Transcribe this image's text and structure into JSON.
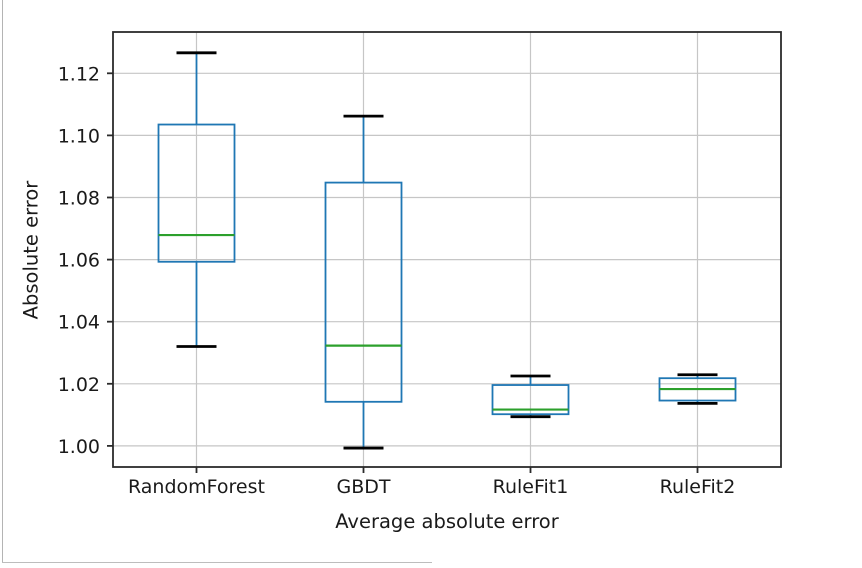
{
  "window": {
    "background": "#ffffff",
    "border_color": "#b4b4b4"
  },
  "chart_data": {
    "type": "box",
    "title": "",
    "xlabel": "Average absolute error",
    "ylabel": "Absolute error",
    "categories": [
      "RandomForest",
      "GBDT",
      "RuleFit1",
      "RuleFit2"
    ],
    "series": [
      {
        "name": "RandomForest",
        "whisker_low": 1.032,
        "q1": 1.0593,
        "median": 1.0679,
        "q3": 1.1035,
        "whisker_high": 1.1266
      },
      {
        "name": "GBDT",
        "whisker_low": 0.9993,
        "q1": 1.0142,
        "median": 1.0323,
        "q3": 1.0848,
        "whisker_high": 1.1062
      },
      {
        "name": "RuleFit1",
        "whisker_low": 1.0094,
        "q1": 1.0102,
        "median": 1.0117,
        "q3": 1.0196,
        "whisker_high": 1.0225
      },
      {
        "name": "RuleFit2",
        "whisker_low": 1.0137,
        "q1": 1.0146,
        "median": 1.0183,
        "q3": 1.0218,
        "whisker_high": 1.0229
      }
    ],
    "y_tick_values": [
      1.0,
      1.02,
      1.04,
      1.06,
      1.08,
      1.1,
      1.12
    ],
    "y_tick_labels": [
      "1.00",
      "1.02",
      "1.04",
      "1.06",
      "1.08",
      "1.10",
      "1.12"
    ],
    "ylim": [
      0.9932,
      1.1333
    ],
    "grid": true,
    "legend": "none",
    "colors": {
      "box": "#1f77b4",
      "whisker": "#1f77b4",
      "cap": "#000000",
      "median": "#2ca02c",
      "grid": "#c6c6c6",
      "spine": "#2b2b2b",
      "text": "#1a1a1a"
    }
  }
}
